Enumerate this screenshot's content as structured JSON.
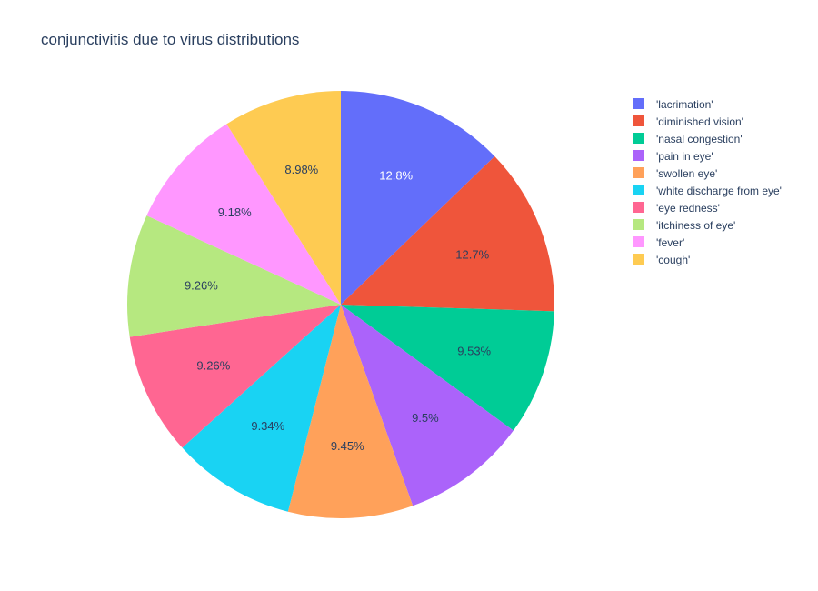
{
  "chart_data": {
    "type": "pie",
    "title": "conjunctivitis due to virus distributions",
    "labels": [
      "'lacrimation'",
      "'diminished vision'",
      "'nasal congestion'",
      "'pain in eye'",
      "'swollen eye'",
      "'white discharge from eye'",
      "'eye redness'",
      "'itchiness of eye'",
      "'fever'",
      "'cough'"
    ],
    "values": [
      12.8,
      12.7,
      9.53,
      9.5,
      9.45,
      9.34,
      9.26,
      9.26,
      9.18,
      8.98
    ],
    "text_labels": [
      "12.8%",
      "12.7%",
      "9.53%",
      "9.5%",
      "9.45%",
      "9.34%",
      "9.26%",
      "9.26%",
      "9.18%",
      "8.98%"
    ],
    "colors": [
      "#636efa",
      "#EF553B",
      "#00cc96",
      "#ab63fa",
      "#FFA15A",
      "#19d3f3",
      "#FF6692",
      "#B6E880",
      "#FF97FF",
      "#FECB52"
    ],
    "label_colors": [
      "#ffffff",
      "#2a3f5f",
      "#2a3f5f",
      "#2a3f5f",
      "#2a3f5f",
      "#2a3f5f",
      "#2a3f5f",
      "#2a3f5f",
      "#2a3f5f",
      "#2a3f5f"
    ],
    "direction": "counterclockwise",
    "start_angle": "top",
    "legend_placement": "top-right"
  }
}
